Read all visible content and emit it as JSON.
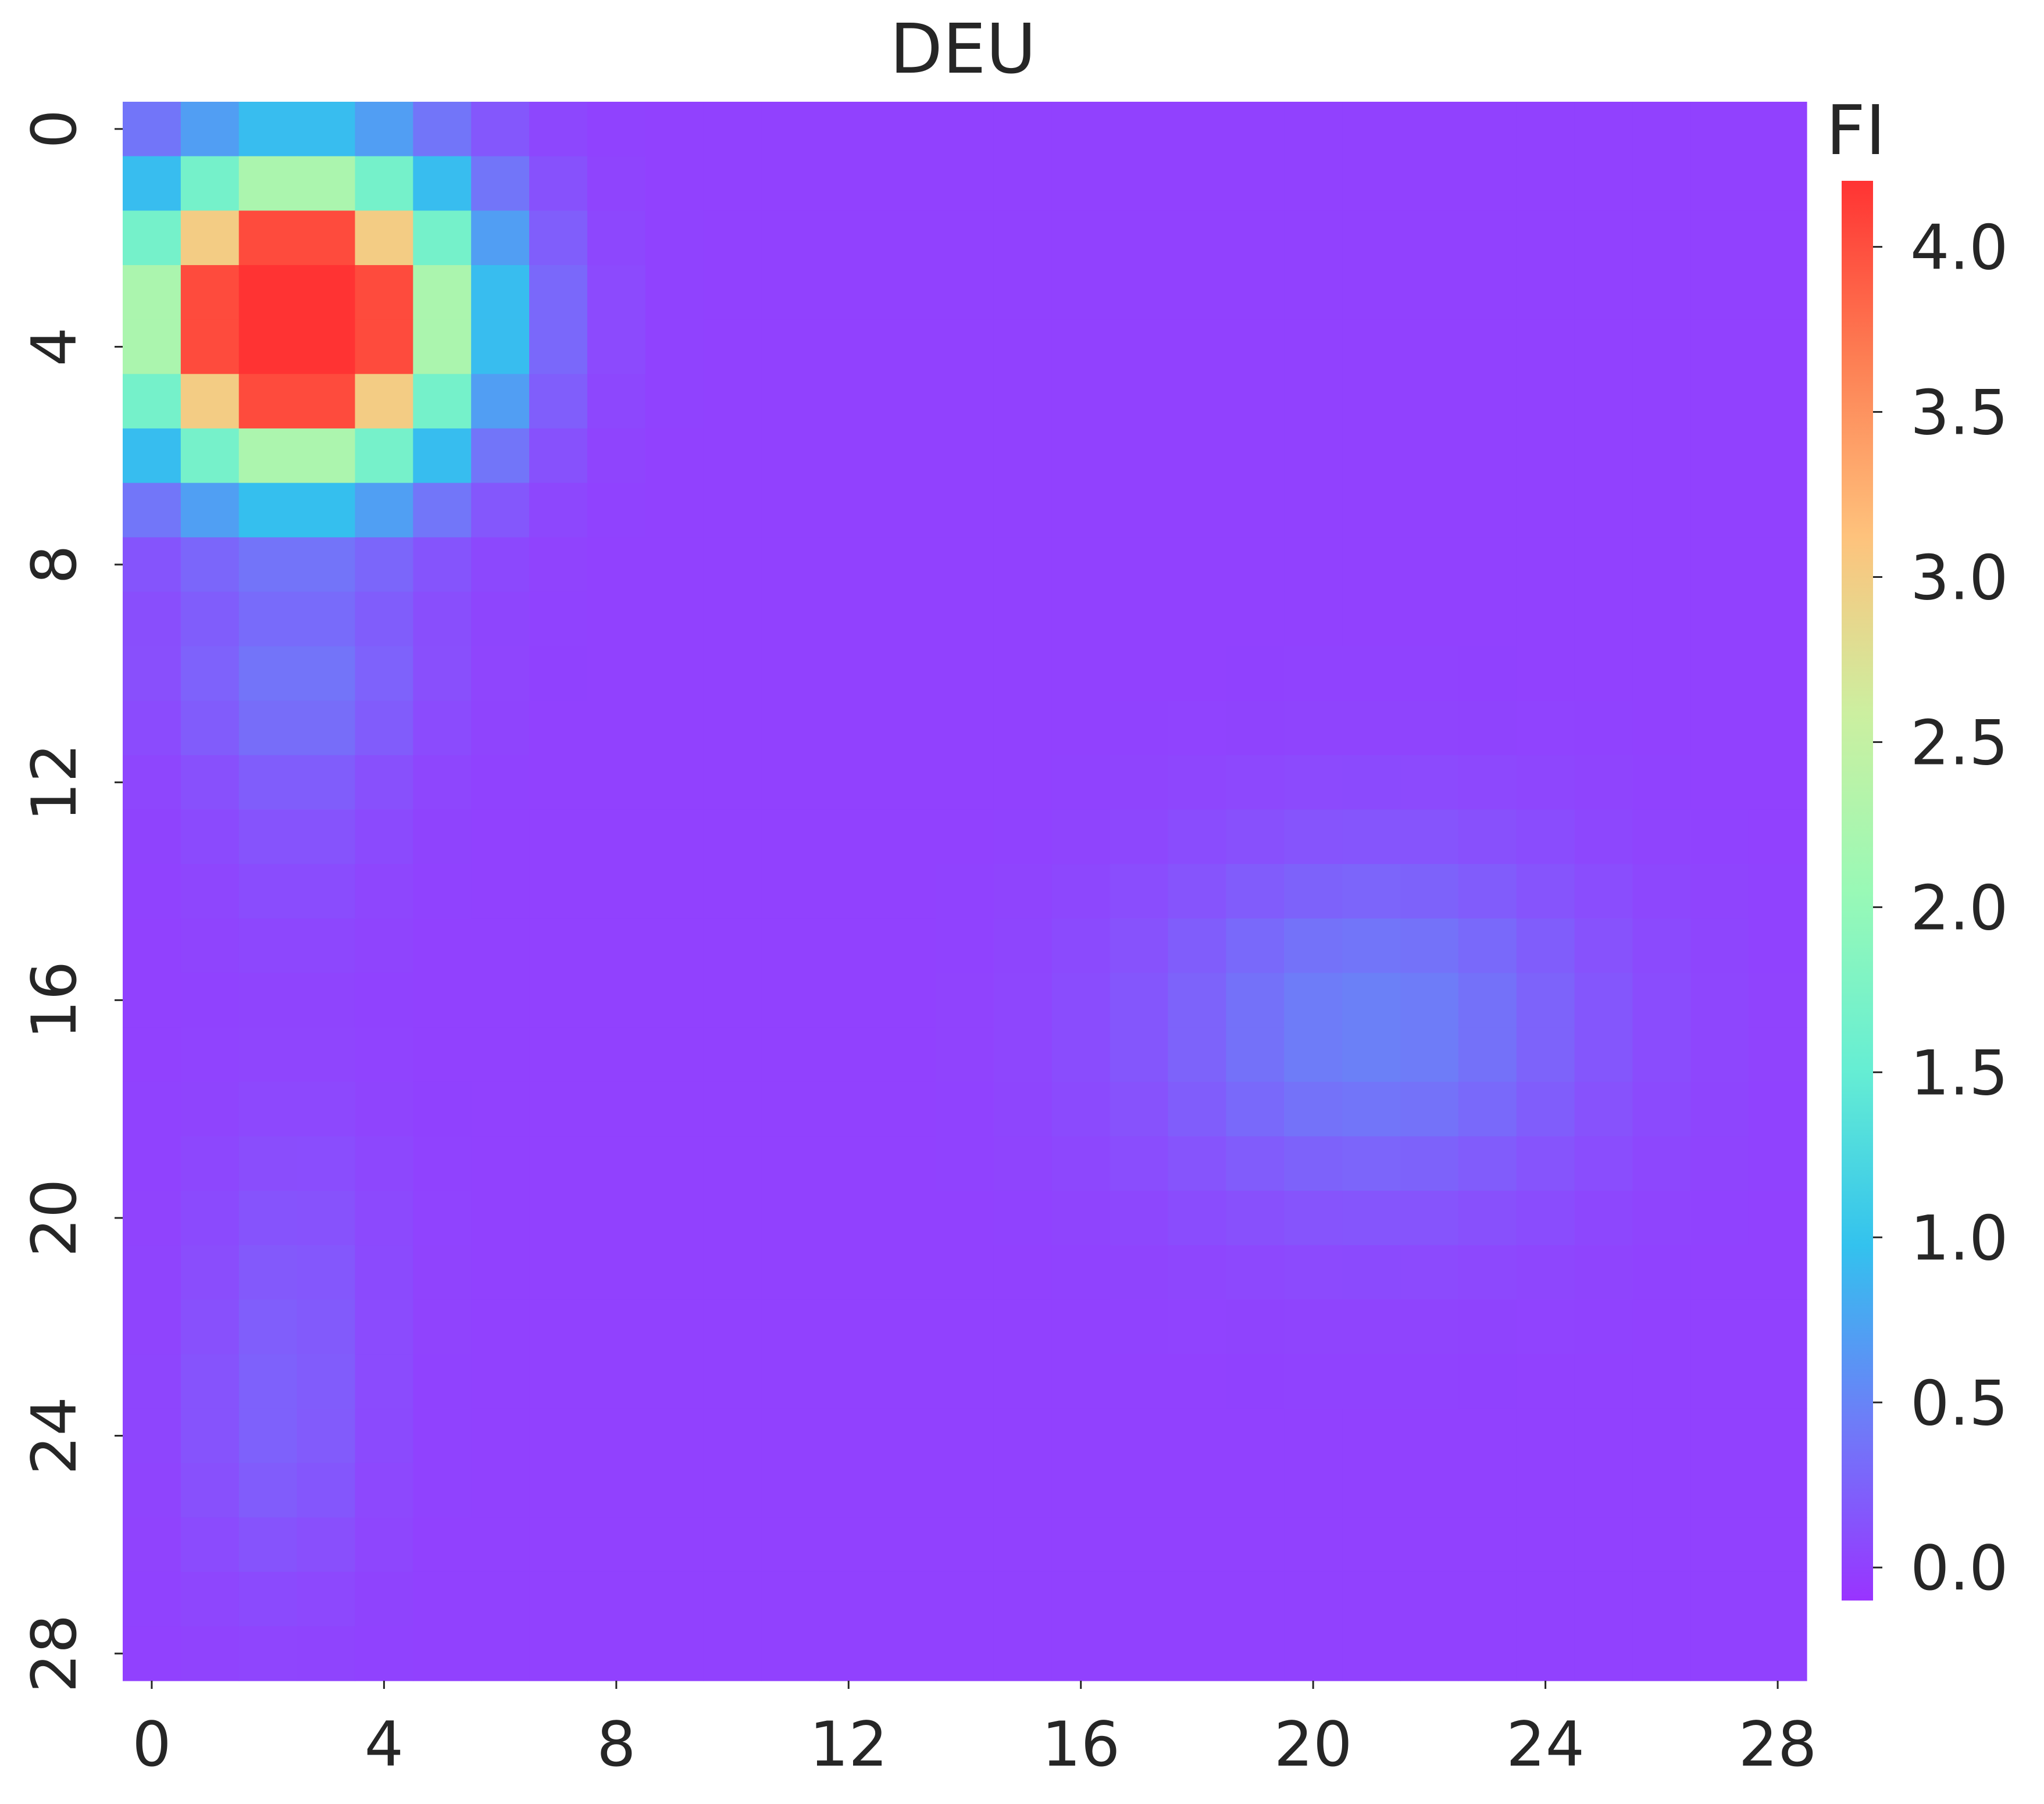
{
  "chart_data": {
    "type": "heatmap",
    "title": "DEU",
    "colorbar_label": "FI",
    "xlabel": "",
    "ylabel": "",
    "n_rows": 29,
    "n_cols": 29,
    "x_tick_labels": [
      "0",
      "4",
      "8",
      "12",
      "16",
      "20",
      "24",
      "28"
    ],
    "y_tick_labels": [
      "0",
      "4",
      "8",
      "12",
      "16",
      "20",
      "24",
      "28"
    ],
    "colorbar_ticks": [
      "0.0",
      "0.5",
      "1.0",
      "1.5",
      "2.0",
      "2.5",
      "3.0",
      "3.5",
      "4.0"
    ],
    "value_range": [
      -0.1,
      4.2
    ],
    "colormap": "rainbow",
    "colormap_stops": [
      "#9933ff",
      "#6e7cf8",
      "#33c2ee",
      "#66eed3",
      "#99f9b6",
      "#ccefa0",
      "#fec27c",
      "#fd7e53",
      "#ff3333"
    ],
    "base_value": 0,
    "hotspots": [
      {
        "row": 3.5,
        "col": 2.5,
        "peak": 5.8,
        "sigma_row": 1.85,
        "sigma_col": 1.85
      },
      {
        "row": 16.5,
        "col": 21,
        "peak": 0.48,
        "sigma_row": 2.3,
        "sigma_col": 2.7
      },
      {
        "row": 24,
        "col": 2.2,
        "peak": 0.22,
        "sigma_row": 2.0,
        "sigma_col": 1.1
      },
      {
        "row": 20.5,
        "col": 2.5,
        "peak": 0.12,
        "sigma_row": 2.0,
        "sigma_col": 1.2
      },
      {
        "row": 12,
        "col": 2.5,
        "peak": 0.15,
        "sigma_row": 2.0,
        "sigma_col": 1.2
      },
      {
        "row": 10,
        "col": 2.5,
        "peak": 0.3,
        "sigma_row": 1.2,
        "sigma_col": 1.6
      }
    ]
  }
}
